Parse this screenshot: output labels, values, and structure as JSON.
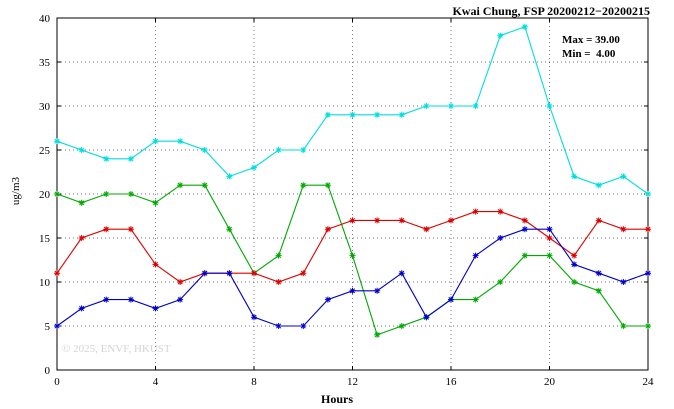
{
  "chart_data": {
    "type": "line",
    "title": "Kwai Chung, FSP 20200212−20200215",
    "xlabel": "Hours",
    "ylabel": "ug/m3",
    "xlim": [
      0,
      24
    ],
    "ylim": [
      0,
      40
    ],
    "x_ticks": [
      0,
      4,
      8,
      12,
      16,
      20,
      24
    ],
    "y_ticks": [
      0,
      5,
      10,
      15,
      20,
      25,
      30,
      35,
      40
    ],
    "grid": true,
    "legend_position": "none",
    "annotations": {
      "max_label": "Max = 39.00",
      "min_label": "Min =  4.00"
    },
    "watermark": "© 2025, ENVF, HKUST",
    "x": [
      0,
      1,
      2,
      3,
      4,
      5,
      6,
      7,
      8,
      9,
      10,
      11,
      12,
      13,
      14,
      15,
      16,
      17,
      18,
      19,
      20,
      21,
      22,
      23,
      24
    ],
    "series": [
      {
        "name": "cyan-series",
        "color": "#00dddd",
        "values": [
          26,
          25,
          24,
          24,
          26,
          26,
          25,
          22,
          23,
          25,
          25,
          29,
          29,
          29,
          29,
          30,
          30,
          30,
          38,
          39,
          30,
          22,
          21,
          22,
          20
        ]
      },
      {
        "name": "green-series",
        "color": "#00aa00",
        "values": [
          20,
          19,
          20,
          20,
          19,
          21,
          21,
          16,
          11,
          13,
          21,
          21,
          13,
          4,
          5,
          6,
          8,
          8,
          10,
          13,
          13,
          10,
          9,
          5,
          5
        ]
      },
      {
        "name": "red-series",
        "color": "#dd0000",
        "values": [
          11,
          15,
          16,
          16,
          12,
          10,
          11,
          11,
          11,
          10,
          11,
          16,
          17,
          17,
          17,
          16,
          17,
          18,
          18,
          17,
          15,
          13,
          17,
          16,
          16
        ]
      },
      {
        "name": "blue-series",
        "color": "#0000cc",
        "values": [
          5,
          7,
          8,
          8,
          7,
          8,
          11,
          11,
          6,
          5,
          5,
          8,
          9,
          9,
          11,
          6,
          8,
          13,
          15,
          16,
          16,
          12,
          11,
          10,
          11
        ]
      }
    ]
  }
}
